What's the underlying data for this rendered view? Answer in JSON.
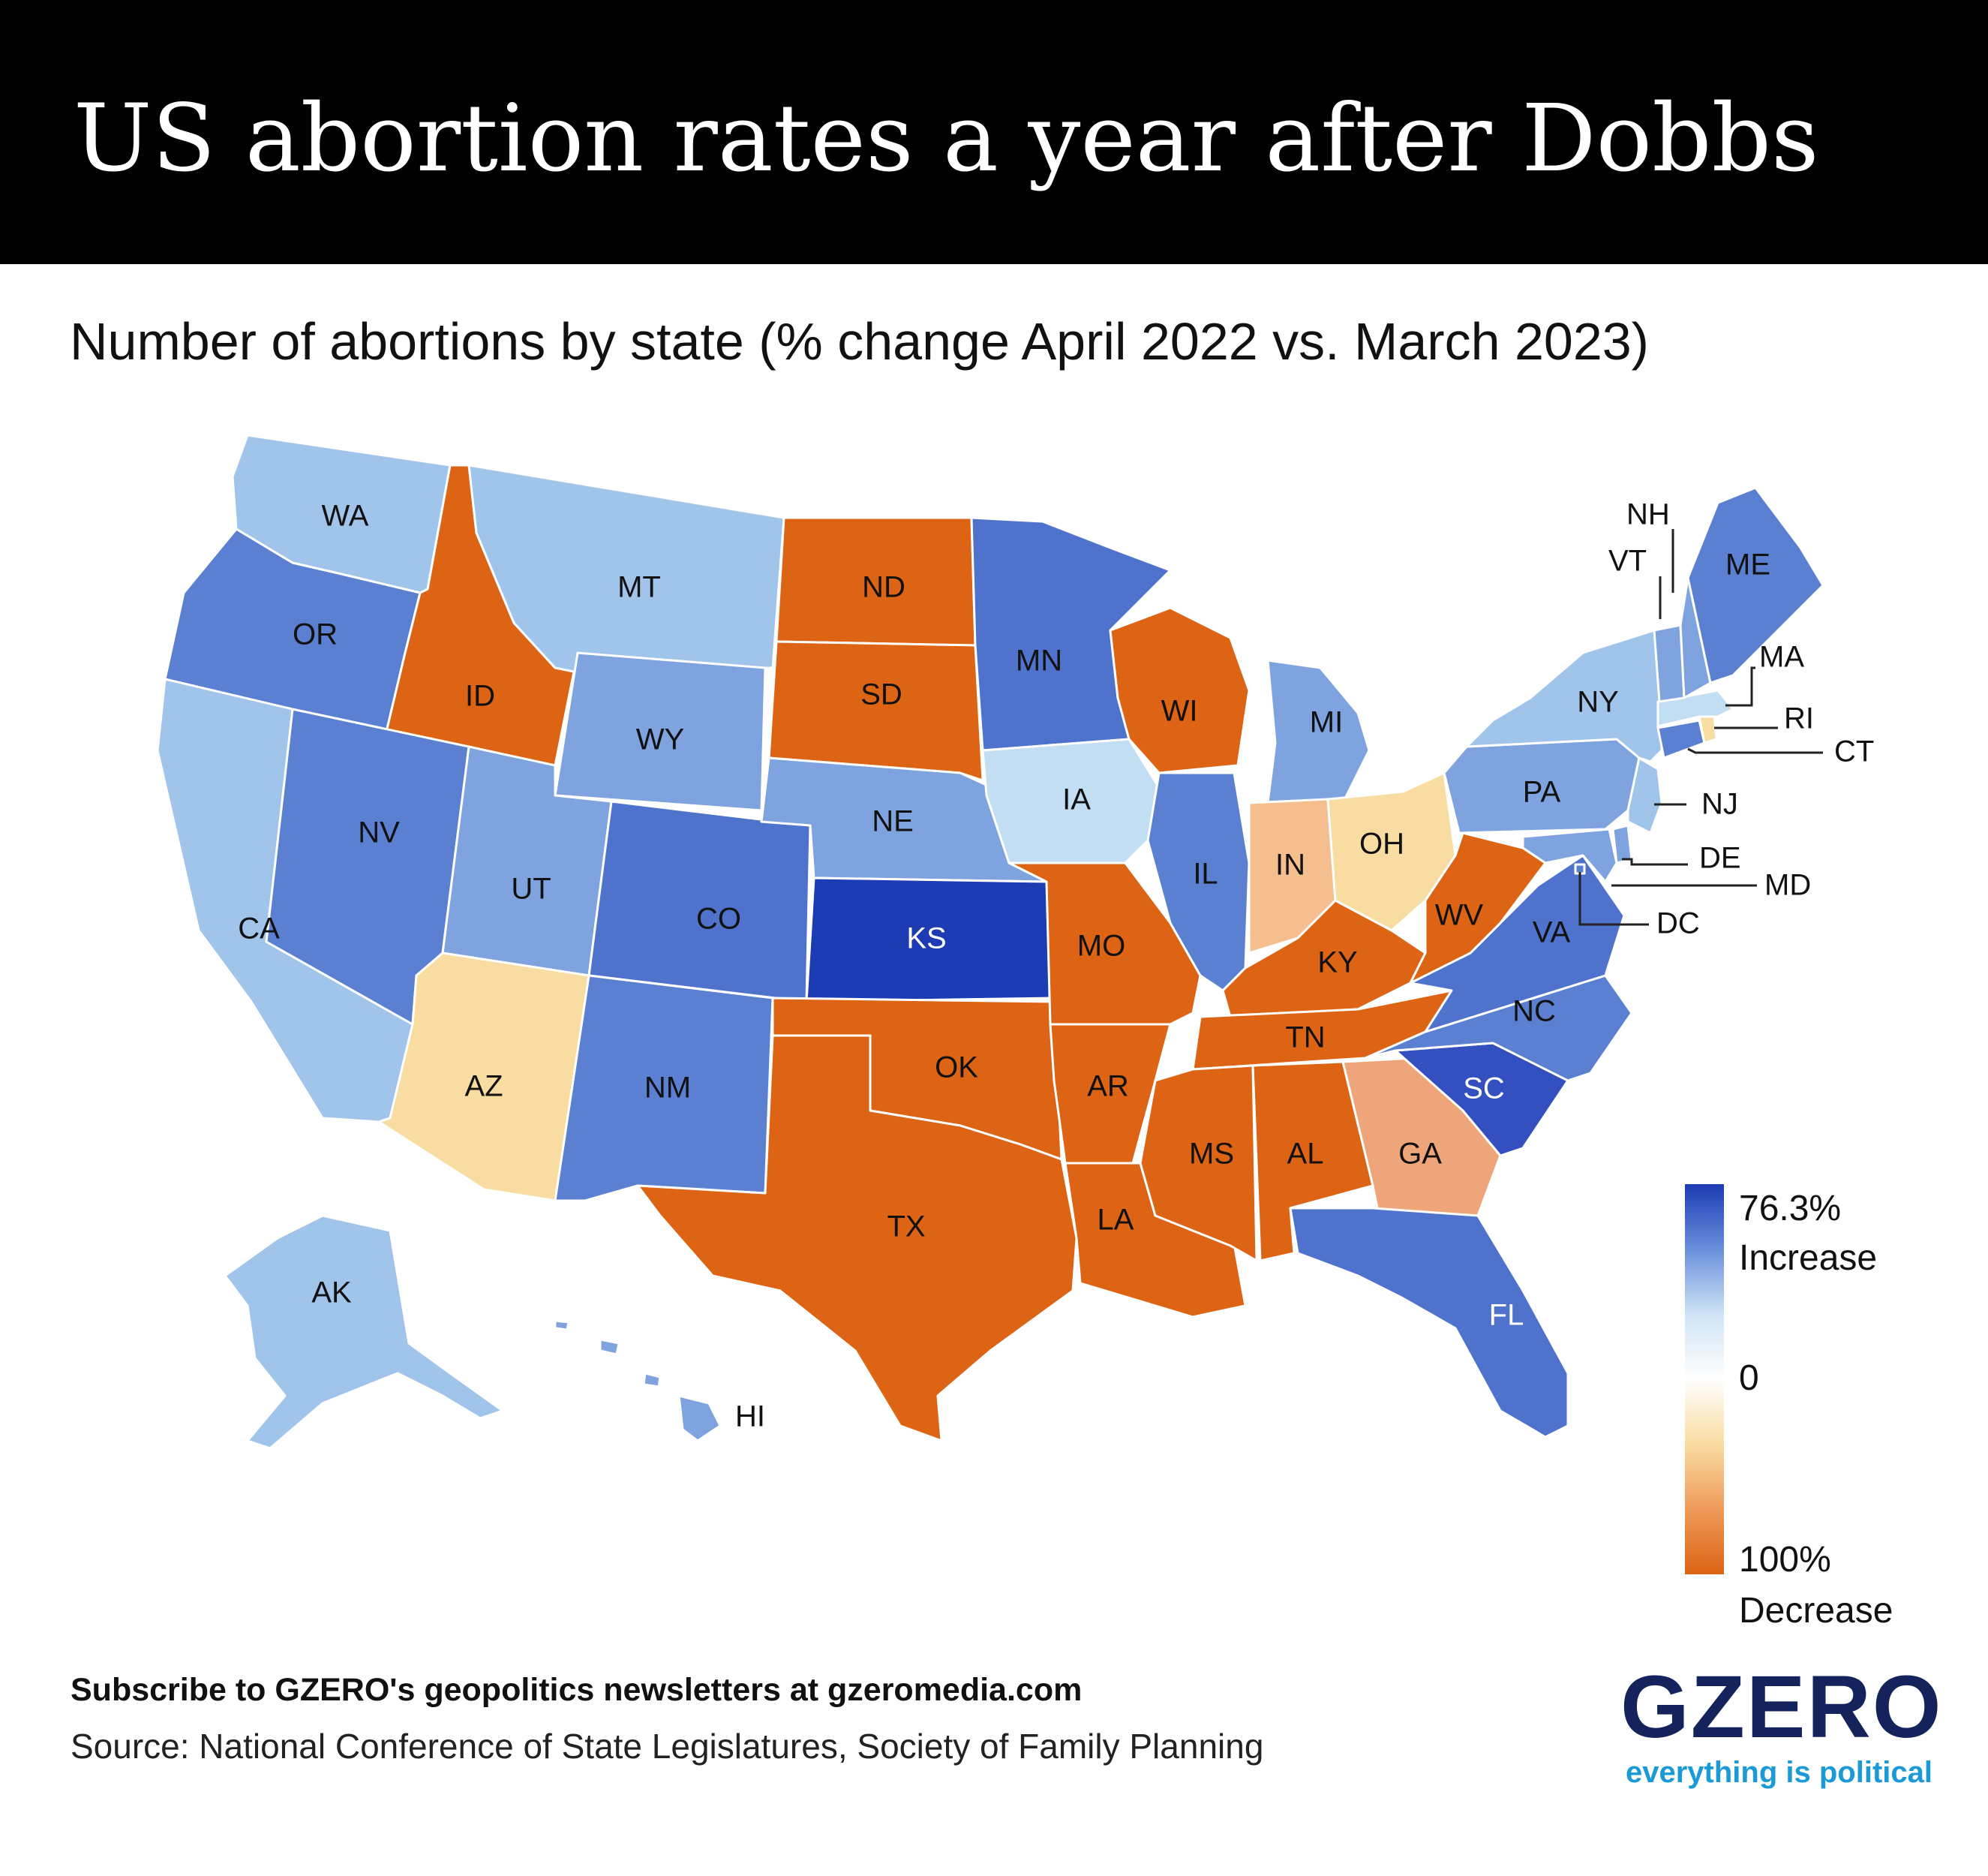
{
  "header": {
    "title": "US abortion rates a year after Dobbs"
  },
  "subtitle": "Number of abortions by state (% change  April 2022 vs. March 2023)",
  "colors": {
    "large_increase": "#1d3bb3",
    "medium_increase": "#4f72cd",
    "small_increase": "#7fa3de",
    "slight_increase": "#a1c4ea",
    "minimal_increase": "#c2def2",
    "slight_decrease": "#f9dca2",
    "moderate_decrease": "#f5be8e",
    "large_decrease": "#efa57a",
    "near_total_decrease": "#dc6414"
  },
  "states": [
    {
      "code": "WA",
      "fill": "#a1c4ea"
    },
    {
      "code": "OR",
      "fill": "#5b80d2"
    },
    {
      "code": "CA",
      "fill": "#a1c4ea"
    },
    {
      "code": "ID",
      "fill": "#dc6414"
    },
    {
      "code": "NV",
      "fill": "#5b80d2"
    },
    {
      "code": "MT",
      "fill": "#a1c4ea"
    },
    {
      "code": "WY",
      "fill": "#7fa3de"
    },
    {
      "code": "UT",
      "fill": "#7fa3de"
    },
    {
      "code": "AZ",
      "fill": "#f9dca2"
    },
    {
      "code": "CO",
      "fill": "#4f72cd"
    },
    {
      "code": "NM",
      "fill": "#5b80d2"
    },
    {
      "code": "ND",
      "fill": "#dc6414"
    },
    {
      "code": "SD",
      "fill": "#dc6414"
    },
    {
      "code": "NE",
      "fill": "#7fa3de"
    },
    {
      "code": "KS",
      "fill": "#1d3bb3"
    },
    {
      "code": "OK",
      "fill": "#dc6414"
    },
    {
      "code": "TX",
      "fill": "#dc6414"
    },
    {
      "code": "MN",
      "fill": "#4f72cd"
    },
    {
      "code": "IA",
      "fill": "#c2def2"
    },
    {
      "code": "MO",
      "fill": "#dc6414"
    },
    {
      "code": "AR",
      "fill": "#dc6414"
    },
    {
      "code": "LA",
      "fill": "#dc6414"
    },
    {
      "code": "WI",
      "fill": "#dc6414"
    },
    {
      "code": "IL",
      "fill": "#5b80d2"
    },
    {
      "code": "MI",
      "fill": "#7fa3de"
    },
    {
      "code": "IN",
      "fill": "#f5be8e"
    },
    {
      "code": "OH",
      "fill": "#f9dca2"
    },
    {
      "code": "KY",
      "fill": "#dc6414"
    },
    {
      "code": "TN",
      "fill": "#dc6414"
    },
    {
      "code": "MS",
      "fill": "#dc6414"
    },
    {
      "code": "AL",
      "fill": "#dc6414"
    },
    {
      "code": "GA",
      "fill": "#efa57a"
    },
    {
      "code": "FL",
      "fill": "#4f72cd"
    },
    {
      "code": "SC",
      "fill": "#3450c0"
    },
    {
      "code": "NC",
      "fill": "#5b80d2"
    },
    {
      "code": "VA",
      "fill": "#4f72cd"
    },
    {
      "code": "WV",
      "fill": "#dc6414"
    },
    {
      "code": "PA",
      "fill": "#7fa3de"
    },
    {
      "code": "NY",
      "fill": "#a1c4ea"
    },
    {
      "code": "NJ",
      "fill": "#a1c4ea"
    },
    {
      "code": "DE",
      "fill": "#7fa3de"
    },
    {
      "code": "MD",
      "fill": "#7fa3de"
    },
    {
      "code": "DC",
      "fill": "#5b80d2"
    },
    {
      "code": "CT",
      "fill": "#5b80d2"
    },
    {
      "code": "RI",
      "fill": "#f9dca2"
    },
    {
      "code": "MA",
      "fill": "#c2def2"
    },
    {
      "code": "VT",
      "fill": "#7fa3de"
    },
    {
      "code": "NH",
      "fill": "#7fa3de"
    },
    {
      "code": "ME",
      "fill": "#5b80d2"
    },
    {
      "code": "AK",
      "fill": "#a1c4ea"
    },
    {
      "code": "HI",
      "fill": "#7fa3de"
    }
  ],
  "legend": {
    "top_value": "76.3%",
    "top_label": "Increase",
    "mid_value": "0",
    "bottom_value": "100%",
    "bottom_label": "Decrease",
    "gradient": [
      "#1d3bb3",
      "#6a8fdb",
      "#cfe4f5",
      "#ffffff",
      "#f9dca2",
      "#ef9a5a",
      "#dc6414"
    ]
  },
  "footer": {
    "subscribe": "Subscribe to GZERO's geopolitics newsletters at gzeromedia.com",
    "source": "Source: National Conference of State Legislatures, Society of Family Planning"
  },
  "logo": {
    "name": "GZERO",
    "tagline": "everything is political"
  }
}
